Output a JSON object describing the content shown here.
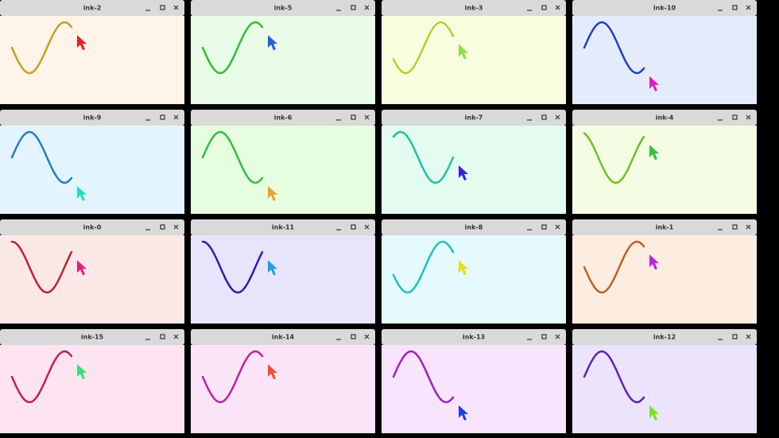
{
  "windows": [
    {
      "title": "ink-2",
      "color": "#c8a020",
      "cursor_color": "#e82020",
      "background": "#fff4e8"
    },
    {
      "title": "ink-5",
      "color": "#30c030",
      "cursor_color": "#2060e0",
      "background": "#e8fce8"
    },
    {
      "title": "ink-3",
      "color": "#b8d020",
      "cursor_color": "#90e040",
      "background": "#f8fde0"
    },
    {
      "title": "ink-10",
      "color": "#2040c0",
      "cursor_color": "#e020c0",
      "background": "#e4ecfc"
    },
    {
      "title": "ink-9",
      "color": "#2080c0",
      "cursor_color": "#20e0c0",
      "background": "#e4f4ff"
    },
    {
      "title": "ink-6",
      "color": "#30c040",
      "cursor_color": "#f0a030",
      "background": "#e6fde0"
    },
    {
      "title": "ink-7",
      "color": "#20c0a0",
      "cursor_color": "#4020e0",
      "background": "#e4fcf0"
    },
    {
      "title": "ink-4",
      "color": "#70c020",
      "cursor_color": "#30c040",
      "background": "#f4fde4"
    },
    {
      "title": "ink-0",
      "color": "#c02030",
      "cursor_color": "#e02080",
      "background": "#fde8e8"
    },
    {
      "title": "ink-11",
      "color": "#2820b0",
      "cursor_color": "#20a0e0",
      "background": "#e8e4fc"
    },
    {
      "title": "ink-8",
      "color": "#20c0c0",
      "cursor_color": "#e0e020",
      "background": "#e4fafe"
    },
    {
      "title": "ink-1",
      "color": "#c06020",
      "cursor_color": "#c020e0",
      "background": "#fdece0"
    },
    {
      "title": "ink-15",
      "color": "#c02050",
      "cursor_color": "#30e080",
      "background": "#fde4f0"
    },
    {
      "title": "ink-14",
      "color": "#c020a0",
      "cursor_color": "#f05030",
      "background": "#fce4f8"
    },
    {
      "title": "ink-13",
      "color": "#a020c0",
      "cursor_color": "#2040e0",
      "background": "#f8e4fc"
    },
    {
      "title": "ink-12",
      "color": "#6020c0",
      "cursor_color": "#80e020",
      "background": "#ece4fc"
    }
  ]
}
